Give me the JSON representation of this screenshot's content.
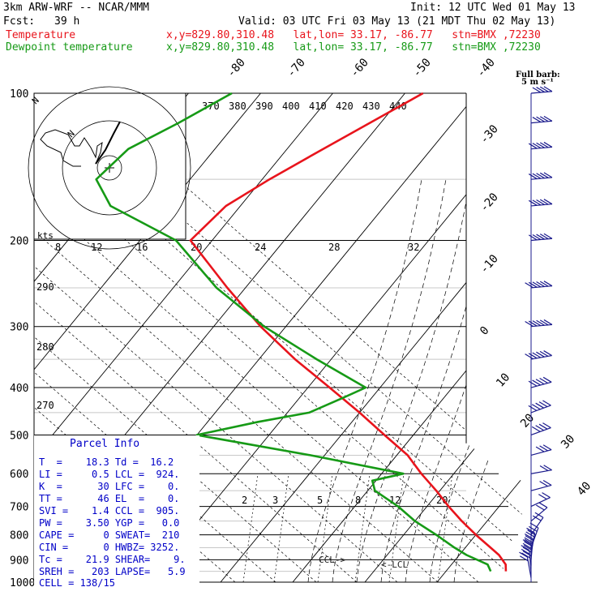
{
  "header": {
    "model": "3km ARW-WRF -- NCAR/MMM",
    "init": "Init: 12 UTC Wed 01 May 13",
    "fcst_label": "Fcst:",
    "fcst_value": "39 h",
    "valid": "Valid: 03 UTC Fri 03 May 13 (21 MDT Thu 02 May 13)",
    "temp_label": "Temperature",
    "temp_info": "x,y=829.80,310.48   lat,lon= 33.17, -86.77   stn=BMX ,72230",
    "dew_label": "Dewpoint temperature",
    "dew_info": "x,y=829.80,310.48   lat,lon= 33.17, -86.77   stn=BMX ,72230"
  },
  "barb_legend": {
    "line1": "Full barb:",
    "line2": "5 m s⁻¹"
  },
  "hodograph": {
    "units": "kts",
    "ring_labels": [
      "N",
      "N"
    ],
    "speed_labels": [
      "8",
      "12",
      "16",
      "20",
      "24",
      "28",
      "32"
    ]
  },
  "parcel_info": {
    "title": "Parcel Info",
    "rows": [
      "T  =    18.3 Td =  16.2",
      "LI =     0.5 LCL =  924.",
      "K  =      30 LFC =    0.",
      "TT =      46 EL  =    0.",
      "SVI =    1.4 CCL =  905.",
      "PW =    3.50 YGP =   0.0",
      "CAPE =     0 SWEAT=  210",
      "CIN =      0 HWBZ= 3252.",
      "Tc =    21.9 SHEAR=    9.",
      "SREH =   203 LAPSE=   5.9",
      "CELL = 138/15"
    ]
  },
  "chart_data": {
    "type": "line",
    "title": "",
    "ylabel": "",
    "y_scale": "log",
    "ylim": [
      1000,
      100
    ],
    "pressure_ticks": [
      100,
      200,
      300,
      400,
      500,
      600,
      700,
      800,
      900,
      1000
    ],
    "isotherm_labels": [
      "-80",
      "-70",
      "-60",
      "-50",
      "-40",
      "-30",
      "-20",
      "-10",
      "0",
      "10",
      "20",
      "30",
      "40"
    ],
    "theta_labels": [
      "370",
      "380",
      "390",
      "400",
      "410",
      "420",
      "430",
      "440"
    ],
    "dry_adiabat_labels": [
      "290",
      "280",
      "270"
    ],
    "mixing_ratio_labels": [
      "2",
      "3",
      "5",
      "8",
      "12",
      "20"
    ],
    "lcl_labels": [
      "CCL->",
      "<-LCL"
    ],
    "series": [
      {
        "name": "Temperature",
        "color": "#e8141c",
        "pressure": [
          950,
          920,
          880,
          850,
          800,
          750,
          700,
          650,
          600,
          550,
          500,
          450,
          400,
          350,
          300,
          250,
          200,
          170,
          150,
          130,
          115,
          100
        ],
        "temp_c": [
          18.3,
          17.5,
          15.5,
          13.5,
          10.0,
          6.5,
          3.0,
          -0.5,
          -4.5,
          -8.5,
          -14.0,
          -20.0,
          -27.0,
          -35.0,
          -43.5,
          -52.5,
          -63.0,
          -62.0,
          -59.0,
          -55.0,
          -51.5,
          -47.5
        ]
      },
      {
        "name": "Dewpoint temperature",
        "color": "#169a16",
        "pressure": [
          950,
          920,
          880,
          850,
          800,
          750,
          700,
          650,
          620,
          600,
          550,
          500,
          470,
          450,
          420,
          400,
          350,
          300,
          250,
          200,
          170,
          150,
          130,
          115,
          100
        ],
        "temp_c": [
          16.2,
          15.0,
          11.0,
          8.5,
          4.5,
          0.0,
          -4.0,
          -9.0,
          -10.5,
          -7.0,
          -22.0,
          -40.0,
          -33.0,
          -27.0,
          -24.0,
          -22.0,
          -32.0,
          -43.0,
          -54.0,
          -65.0,
          -78.0,
          -83.0,
          -82.0,
          -78.0,
          -74.0
        ]
      }
    ],
    "wind_barbs": [
      {
        "p": 980,
        "spd": 12,
        "dir": 170
      },
      {
        "p": 950,
        "spd": 16,
        "dir": 175
      },
      {
        "p": 925,
        "spd": 20,
        "dir": 180
      },
      {
        "p": 900,
        "spd": 22,
        "dir": 185
      },
      {
        "p": 875,
        "spd": 20,
        "dir": 190
      },
      {
        "p": 850,
        "spd": 16,
        "dir": 200
      },
      {
        "p": 800,
        "spd": 12,
        "dir": 215
      },
      {
        "p": 750,
        "spd": 10,
        "dir": 230
      },
      {
        "p": 700,
        "spd": 10,
        "dir": 245
      },
      {
        "p": 650,
        "spd": 12,
        "dir": 255
      },
      {
        "p": 600,
        "spd": 14,
        "dir": 260
      },
      {
        "p": 550,
        "spd": 18,
        "dir": 255
      },
      {
        "p": 500,
        "spd": 22,
        "dir": 250
      },
      {
        "p": 450,
        "spd": 25,
        "dir": 250
      },
      {
        "p": 400,
        "spd": 28,
        "dir": 255
      },
      {
        "p": 350,
        "spd": 30,
        "dir": 260
      },
      {
        "p": 300,
        "spd": 30,
        "dir": 265
      },
      {
        "p": 250,
        "spd": 30,
        "dir": 265
      },
      {
        "p": 200,
        "spd": 28,
        "dir": 265
      },
      {
        "p": 170,
        "spd": 27,
        "dir": 265
      },
      {
        "p": 150,
        "spd": 26,
        "dir": 265
      },
      {
        "p": 130,
        "spd": 25,
        "dir": 265
      },
      {
        "p": 115,
        "spd": 24,
        "dir": 265
      },
      {
        "p": 100,
        "spd": 22,
        "dir": 265
      }
    ]
  }
}
